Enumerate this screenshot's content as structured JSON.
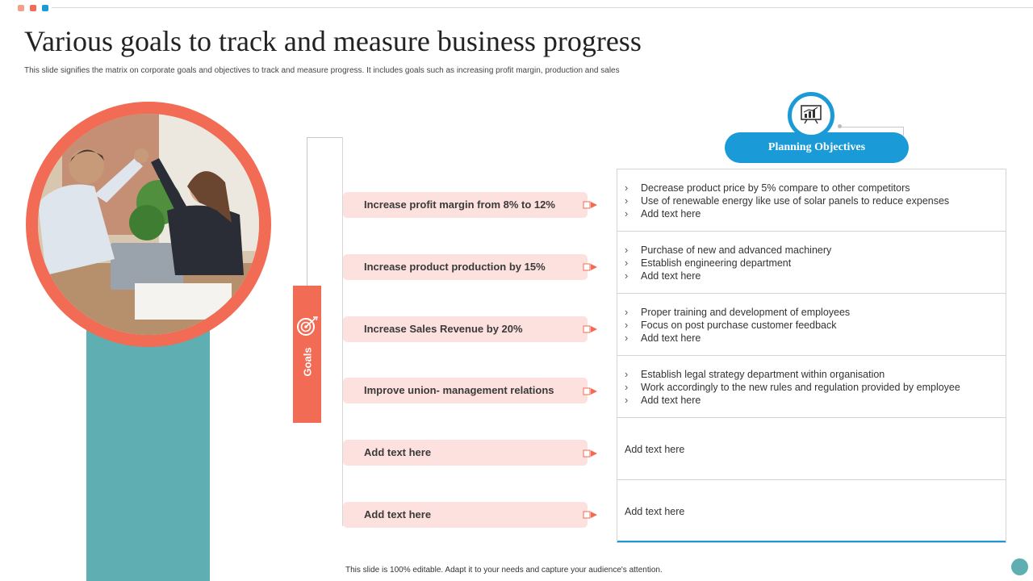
{
  "header": {
    "title": "Various goals to track and measure business progress",
    "subtitle": "This slide signifies the matrix on corporate goals and objectives to track and measure progress. It includes goals such as increasing profit margin, production and sales"
  },
  "colors": {
    "accent_coral": "#f26b55",
    "accent_blue": "#1a9ad6",
    "accent_teal": "#5fafb2",
    "pill_bg": "#fde1de"
  },
  "goals": {
    "label": "Goals",
    "icon": "target-icon",
    "items": [
      "Increase profit margin from 8% to 12%",
      "Increase product production by 15%",
      "Increase Sales Revenue by 20%",
      "Improve union- management relations",
      "Add text here",
      "Add text here"
    ]
  },
  "objectives": {
    "heading": "Planning Objectives",
    "icon": "chart-board-icon",
    "rows": [
      {
        "bullets": [
          "Decrease product price by 5% compare to other competitors",
          "Use of renewable energy like use of solar panels to reduce expenses",
          "Add text here"
        ]
      },
      {
        "bullets": [
          "Purchase of new and advanced machinery",
          "Establish engineering department",
          "Add text here"
        ]
      },
      {
        "bullets": [
          "Proper training and development of employees",
          "Focus on post purchase customer feedback",
          "Add text here"
        ]
      },
      {
        "bullets": [
          "Establish legal strategy department within organisation",
          "Work accordingly to the new rules and regulation provided by employee",
          "Add text here"
        ]
      },
      {
        "text": "Add text here"
      },
      {
        "text": "Add text here"
      }
    ]
  },
  "footer": "This slide is 100% editable. Adapt it to your needs and capture your audience's attention."
}
